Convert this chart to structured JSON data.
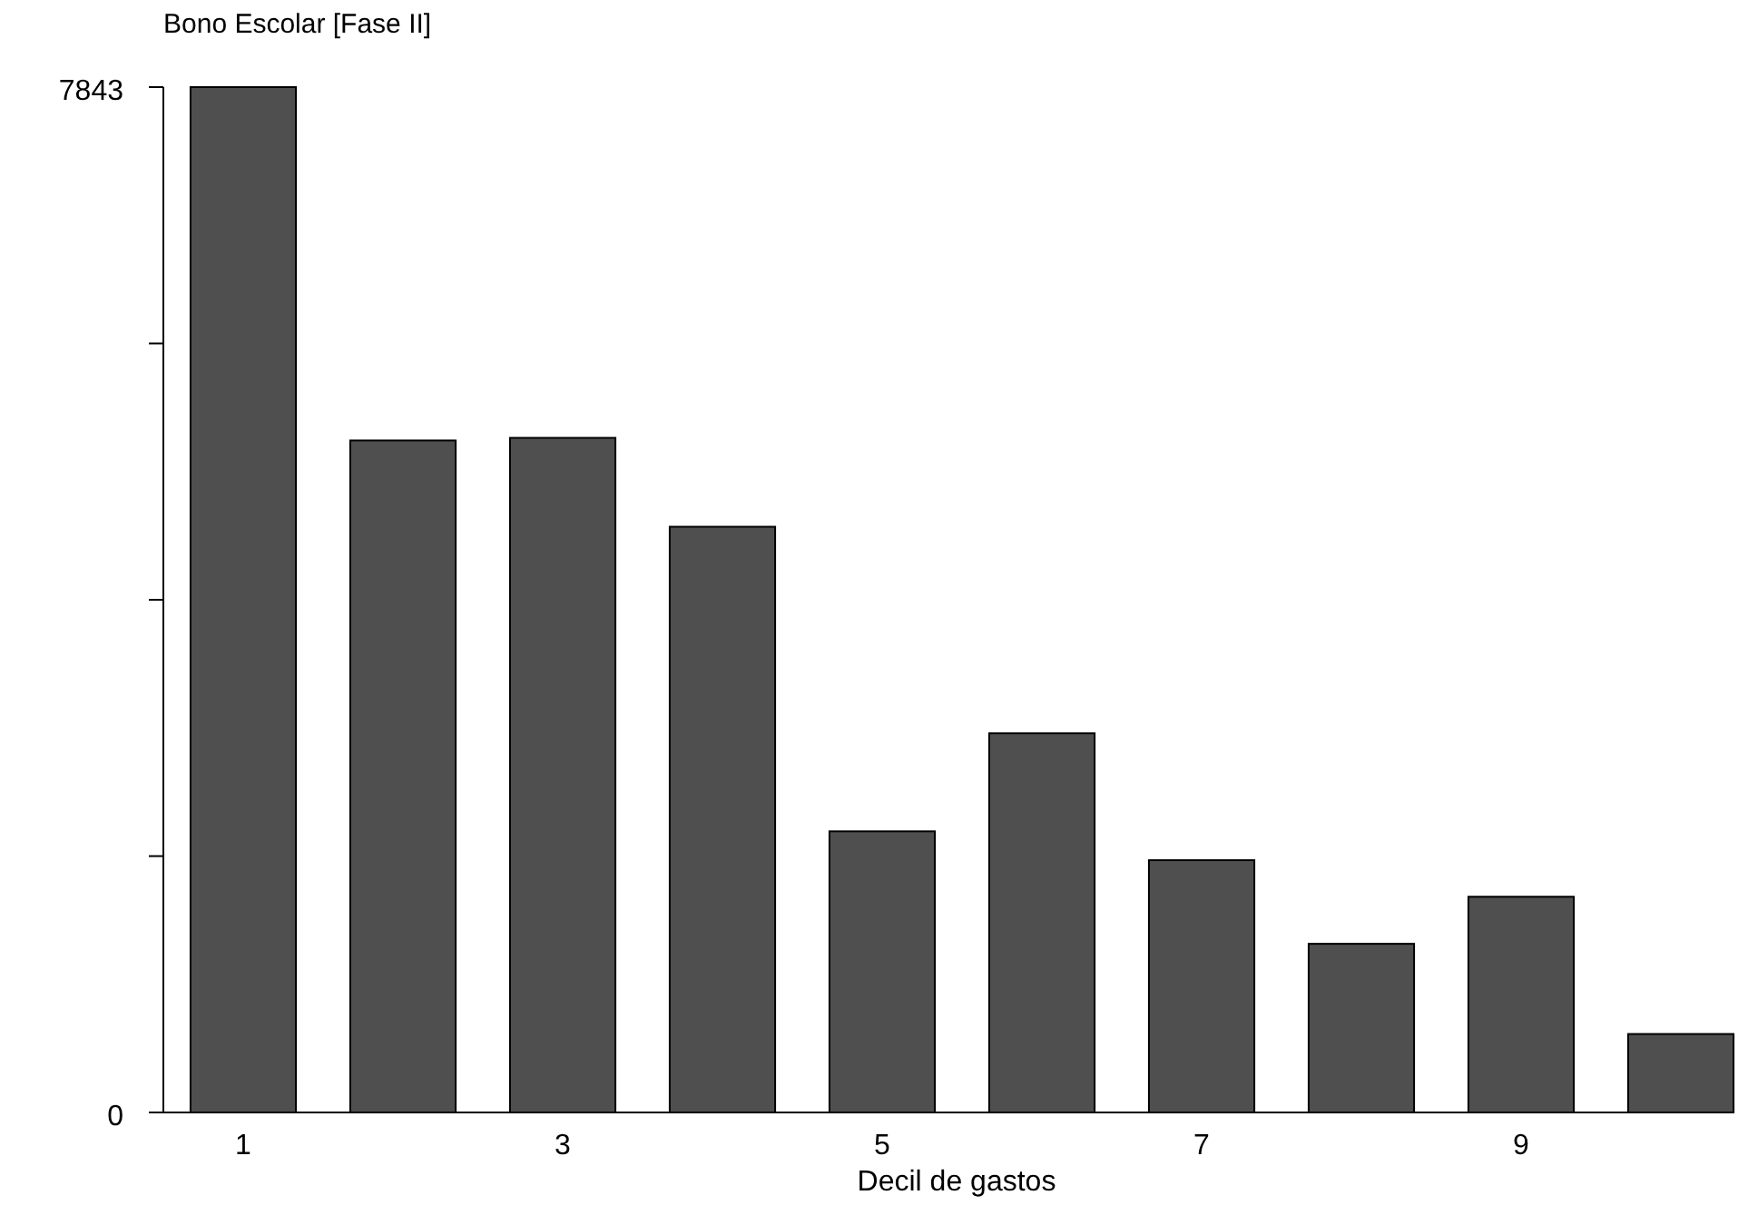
{
  "chart_data": {
    "type": "bar",
    "title": "Bono Escolar [Fase II]",
    "xlabel": "Decil de gastos",
    "categories": [
      "1",
      null,
      "3",
      null,
      "5",
      null,
      "7",
      null,
      "9",
      null
    ],
    "values": [
      7843,
      5140,
      5160,
      4480,
      2150,
      2900,
      1930,
      1290,
      1650,
      600
    ],
    "color": "#4f4f4f",
    "ylim": [
      0,
      7843
    ],
    "yticks": [
      0,
      {
        "value": 1960.75,
        "label": null
      },
      {
        "value": 3921.5,
        "label": null
      },
      {
        "value": 5882.25,
        "label": null
      },
      7843
    ],
    "grid": false
  }
}
